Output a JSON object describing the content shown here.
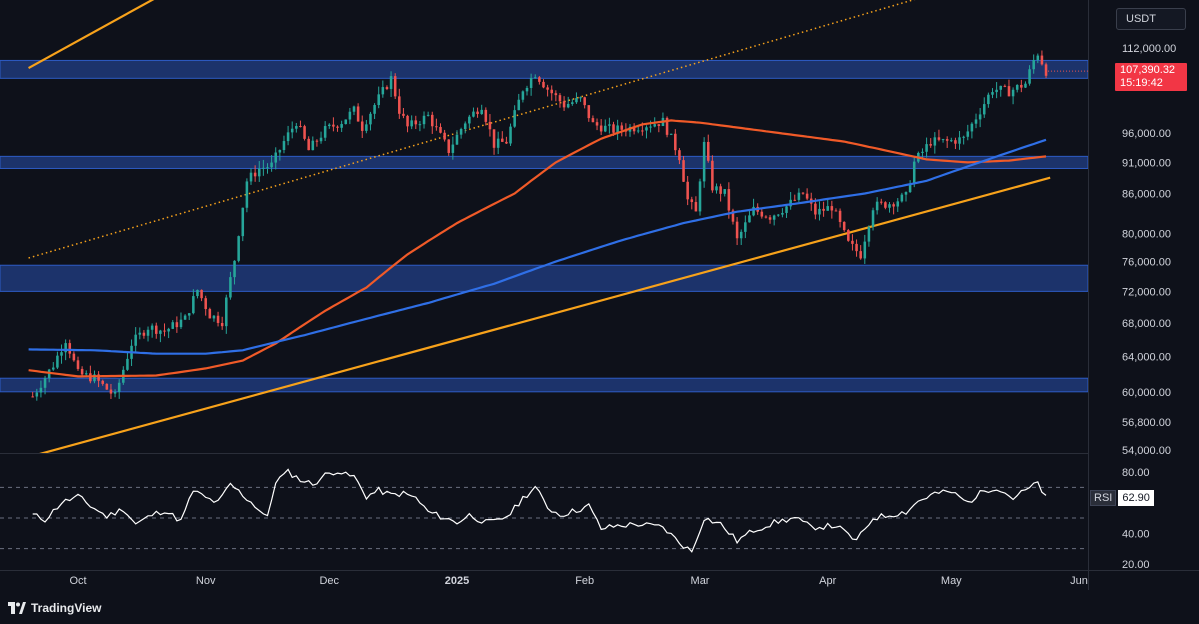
{
  "app": {
    "brand": "TradingView",
    "brand_icon": "tradingview-logo-icon"
  },
  "currency": "USDT",
  "last_price": {
    "value": "107,390.32",
    "countdown": "15:19:42",
    "color": "#f23645"
  },
  "rsi_panel": {
    "label": "RSI",
    "value": "62.90",
    "color": "#ffffff"
  },
  "colors": {
    "background": "#0e111a",
    "zone": "#1f3a7a",
    "zone_border": "#2d5bc4",
    "up": "#26a69a",
    "down": "#ef5350",
    "ma_short": "#f05a28",
    "ma_long": "#2f6fe6",
    "trendline": "#f7a21b"
  },
  "chart_data": {
    "type": "candlestick",
    "symbol_quote": "USDT",
    "x_axis_labels": [
      "Oct",
      "Nov",
      "Dec",
      "2025",
      "Feb",
      "Mar",
      "Apr",
      "May",
      "Jun"
    ],
    "y_axis_labels": [
      "112,000.00",
      "96,000.00",
      "91,000.00",
      "86,000.00",
      "80,000.00",
      "76,000.00",
      "72,000.00",
      "68,000.00",
      "64,000.00",
      "60,000.00",
      "56,800.00",
      "54,000.00"
    ],
    "date_range": [
      "2024-09-20",
      "2025-05-24"
    ],
    "support_resistance_zones": [
      {
        "low": 106000,
        "high": 109500
      },
      {
        "low": 90000,
        "high": 92000
      },
      {
        "low": 72000,
        "high": 75500
      },
      {
        "low": 60000,
        "high": 61500
      }
    ],
    "trendlines": [
      {
        "style": "solid",
        "points": [
          [
            "2024-09-19",
            108000
          ],
          [
            "2024-11-03",
            130000
          ]
        ]
      },
      {
        "style": "solid",
        "points": [
          [
            "2024-09-19",
            53300
          ],
          [
            "2025-05-25",
            88500
          ]
        ]
      },
      {
        "style": "dotted",
        "points": [
          [
            "2024-09-19",
            76500
          ],
          [
            "2025-05-20",
            130000
          ]
        ]
      }
    ],
    "moving_averages": [
      {
        "color": "#f05a28",
        "points": [
          [
            "2024-09-19",
            62400
          ],
          [
            "2024-10-01",
            61700
          ],
          [
            "2024-10-20",
            61800
          ],
          [
            "2024-11-01",
            62600
          ],
          [
            "2024-11-10",
            63500
          ],
          [
            "2024-11-18",
            65500
          ],
          [
            "2024-11-30",
            69500
          ],
          [
            "2024-12-10",
            72500
          ],
          [
            "2024-12-20",
            77000
          ],
          [
            "2025-01-01",
            81500
          ],
          [
            "2025-01-15",
            86000
          ],
          [
            "2025-01-25",
            91000
          ],
          [
            "2025-02-05",
            95000
          ],
          [
            "2025-02-15",
            97500
          ],
          [
            "2025-02-22",
            98200
          ],
          [
            "2025-03-01",
            97800
          ],
          [
            "2025-03-20",
            96000
          ],
          [
            "2025-04-05",
            94500
          ],
          [
            "2025-04-15",
            93000
          ],
          [
            "2025-04-25",
            91500
          ],
          [
            "2025-05-05",
            91000
          ],
          [
            "2025-05-15",
            91300
          ],
          [
            "2025-05-24",
            92000
          ]
        ]
      },
      {
        "color": "#2f6fe6",
        "points": [
          [
            "2024-09-19",
            64800
          ],
          [
            "2024-10-05",
            64700
          ],
          [
            "2024-10-20",
            64300
          ],
          [
            "2024-11-01",
            64300
          ],
          [
            "2024-11-10",
            64700
          ],
          [
            "2024-11-25",
            66500
          ],
          [
            "2024-12-10",
            68500
          ],
          [
            "2024-12-25",
            70500
          ],
          [
            "2025-01-10",
            73000
          ],
          [
            "2025-01-25",
            76000
          ],
          [
            "2025-02-10",
            79000
          ],
          [
            "2025-02-25",
            81500
          ],
          [
            "2025-03-10",
            83200
          ],
          [
            "2025-03-25",
            84500
          ],
          [
            "2025-04-10",
            86000
          ],
          [
            "2025-04-25",
            88000
          ],
          [
            "2025-05-10",
            91500
          ],
          [
            "2025-05-24",
            94800
          ]
        ]
      }
    ],
    "price_keypoints": [
      [
        "2024-09-20",
        59500
      ],
      [
        "2024-09-25",
        63000
      ],
      [
        "2024-09-28",
        66000
      ],
      [
        "2024-10-01",
        62000
      ],
      [
        "2024-10-05",
        61500
      ],
      [
        "2024-10-10",
        59500
      ],
      [
        "2024-10-14",
        65500
      ],
      [
        "2024-10-18",
        67500
      ],
      [
        "2024-10-22",
        67000
      ],
      [
        "2024-10-27",
        68500
      ],
      [
        "2024-10-30",
        72200
      ],
      [
        "2024-11-02",
        69000
      ],
      [
        "2024-11-05",
        68200
      ],
      [
        "2024-11-08",
        76300
      ],
      [
        "2024-11-11",
        88000
      ],
      [
        "2024-11-14",
        90000
      ],
      [
        "2024-11-17",
        90500
      ],
      [
        "2024-11-20",
        94500
      ],
      [
        "2024-11-23",
        98000
      ],
      [
        "2024-11-26",
        93000
      ],
      [
        "2024-11-30",
        96500
      ],
      [
        "2024-12-04",
        98000
      ],
      [
        "2024-12-07",
        100000
      ],
      [
        "2024-12-09",
        97000
      ],
      [
        "2024-12-12",
        101000
      ],
      [
        "2024-12-16",
        106000
      ],
      [
        "2024-12-18",
        100000
      ],
      [
        "2024-12-20",
        97000
      ],
      [
        "2024-12-25",
        99000
      ],
      [
        "2024-12-30",
        93000
      ],
      [
        "2025-01-03",
        98000
      ],
      [
        "2025-01-07",
        101000
      ],
      [
        "2025-01-10",
        94000
      ],
      [
        "2025-01-13",
        94500
      ],
      [
        "2025-01-17",
        104000
      ],
      [
        "2025-01-20",
        107000
      ],
      [
        "2025-01-23",
        104000
      ],
      [
        "2025-01-27",
        101000
      ],
      [
        "2025-01-31",
        102000
      ],
      [
        "2025-02-03",
        97500
      ],
      [
        "2025-02-08",
        96500
      ],
      [
        "2025-02-13",
        97000
      ],
      [
        "2025-02-20",
        98000
      ],
      [
        "2025-02-24",
        92000
      ],
      [
        "2025-02-26",
        85000
      ],
      [
        "2025-02-28",
        83000
      ],
      [
        "2025-03-02",
        94000
      ],
      [
        "2025-03-04",
        87000
      ],
      [
        "2025-03-07",
        86000
      ],
      [
        "2025-03-10",
        79000
      ],
      [
        "2025-03-14",
        83500
      ],
      [
        "2025-03-18",
        82500
      ],
      [
        "2025-03-22",
        84000
      ],
      [
        "2025-03-26",
        86000
      ],
      [
        "2025-03-29",
        83000
      ],
      [
        "2025-04-02",
        84000
      ],
      [
        "2025-04-06",
        78500
      ],
      [
        "2025-04-09",
        77000
      ],
      [
        "2025-04-12",
        84000
      ],
      [
        "2025-04-16",
        84500
      ],
      [
        "2025-04-20",
        85500
      ],
      [
        "2025-04-22",
        91000
      ],
      [
        "2025-04-26",
        94500
      ],
      [
        "2025-04-30",
        94500
      ],
      [
        "2025-05-04",
        95000
      ],
      [
        "2025-05-08",
        100000
      ],
      [
        "2025-05-11",
        104000
      ],
      [
        "2025-05-15",
        103500
      ],
      [
        "2025-05-19",
        105000
      ],
      [
        "2025-05-21",
        109500
      ],
      [
        "2025-05-22",
        111000
      ],
      [
        "2025-05-24",
        107400
      ]
    ],
    "rsi": {
      "name": "RSI",
      "current": 62.9,
      "y_labels": [
        "80.00",
        "40.00",
        "20.00"
      ],
      "levels": [
        70,
        50,
        30
      ],
      "keypoints": [
        [
          "2024-09-20",
          52
        ],
        [
          "2024-09-23",
          49
        ],
        [
          "2024-09-27",
          60
        ],
        [
          "2024-10-01",
          64
        ],
        [
          "2024-10-04",
          58
        ],
        [
          "2024-10-08",
          51
        ],
        [
          "2024-10-12",
          56
        ],
        [
          "2024-10-15",
          46
        ],
        [
          "2024-10-19",
          52
        ],
        [
          "2024-10-22",
          55
        ],
        [
          "2024-10-26",
          48
        ],
        [
          "2024-10-29",
          68
        ],
        [
          "2024-11-01",
          63
        ],
        [
          "2024-11-04",
          60
        ],
        [
          "2024-11-07",
          72
        ],
        [
          "2024-11-10",
          65
        ],
        [
          "2024-11-13",
          58
        ],
        [
          "2024-11-16",
          50
        ],
        [
          "2024-11-18",
          74
        ],
        [
          "2024-11-21",
          80
        ],
        [
          "2024-11-24",
          75
        ],
        [
          "2024-11-27",
          72
        ],
        [
          "2024-11-30",
          78
        ],
        [
          "2024-12-03",
          81
        ],
        [
          "2024-12-05",
          78
        ],
        [
          "2024-12-07",
          77
        ],
        [
          "2024-12-10",
          64
        ],
        [
          "2024-12-13",
          68
        ],
        [
          "2024-12-16",
          65
        ],
        [
          "2024-12-19",
          66
        ],
        [
          "2024-12-22",
          63
        ],
        [
          "2024-12-25",
          54
        ],
        [
          "2024-12-28",
          51
        ],
        [
          "2025-01-01",
          47
        ],
        [
          "2025-01-04",
          52
        ],
        [
          "2025-01-08",
          47
        ],
        [
          "2025-01-11",
          48
        ],
        [
          "2025-01-14",
          53
        ],
        [
          "2025-01-17",
          63
        ],
        [
          "2025-01-20",
          70
        ],
        [
          "2025-01-23",
          57
        ],
        [
          "2025-01-26",
          52
        ],
        [
          "2025-01-30",
          55
        ],
        [
          "2025-02-02",
          58
        ],
        [
          "2025-02-05",
          43
        ],
        [
          "2025-02-09",
          45
        ],
        [
          "2025-02-14",
          46
        ],
        [
          "2025-02-20",
          44
        ],
        [
          "2025-02-24",
          34
        ],
        [
          "2025-02-27",
          28
        ],
        [
          "2025-03-02",
          50
        ],
        [
          "2025-03-06",
          46
        ],
        [
          "2025-03-10",
          35
        ],
        [
          "2025-03-14",
          42
        ],
        [
          "2025-03-19",
          47
        ],
        [
          "2025-03-24",
          50
        ],
        [
          "2025-03-28",
          44
        ],
        [
          "2025-04-03",
          45
        ],
        [
          "2025-04-08",
          35
        ],
        [
          "2025-04-12",
          50
        ],
        [
          "2025-04-16",
          52
        ],
        [
          "2025-04-20",
          54
        ],
        [
          "2025-04-23",
          61
        ],
        [
          "2025-04-27",
          66
        ],
        [
          "2025-05-01",
          67
        ],
        [
          "2025-05-05",
          60
        ],
        [
          "2025-05-09",
          68
        ],
        [
          "2025-05-12",
          70
        ],
        [
          "2025-05-16",
          63
        ],
        [
          "2025-05-19",
          68
        ],
        [
          "2025-05-21",
          71
        ],
        [
          "2025-05-22",
          73
        ],
        [
          "2025-05-24",
          62.9
        ]
      ]
    }
  }
}
